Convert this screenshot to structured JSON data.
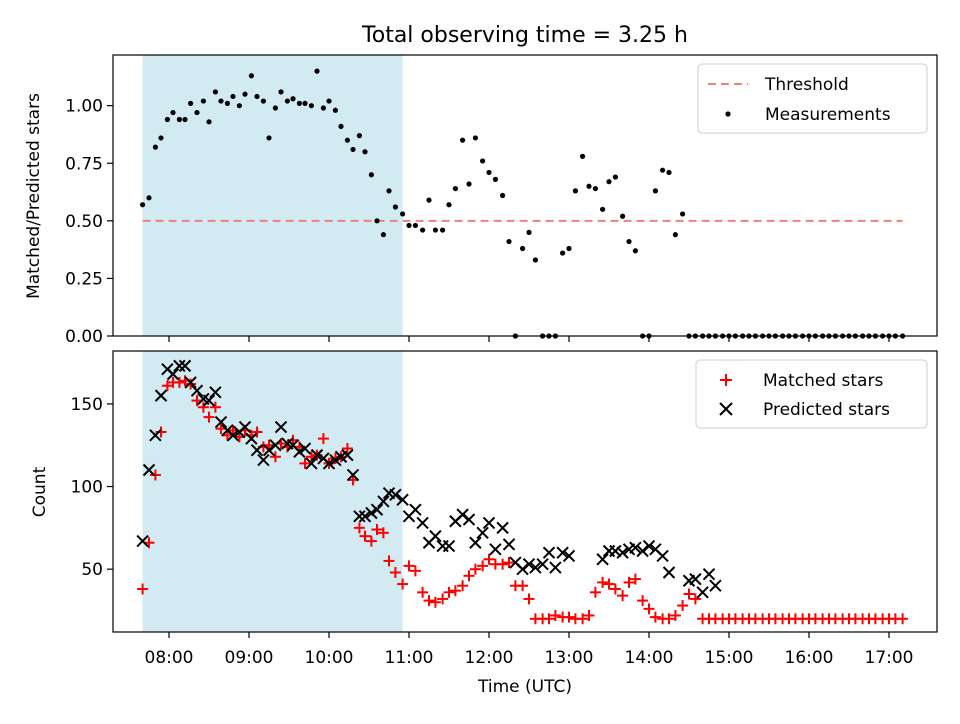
{
  "title": "Total observing time = 3.25 h",
  "colors": {
    "shade": "#add8e6",
    "threshold": "#f08080",
    "matched": "#ff0000",
    "predicted": "#000000",
    "measurement": "#000000"
  },
  "chart_data": [
    {
      "type": "scatter",
      "title": "Total observing time = 3.25 h",
      "xlabel": "",
      "ylabel": "Matched/Predicted stars",
      "ylim": [
        0,
        1.22
      ],
      "yticks": [
        0.0,
        0.25,
        0.5,
        0.75,
        1.0
      ],
      "ytick_labels": [
        "0.00",
        "0.25",
        "0.50",
        "0.75",
        "1.00"
      ],
      "xlim": [
        7.3,
        17.6
      ],
      "shaded_region": [
        7.67,
        10.92
      ],
      "legend": "top-right",
      "series": [
        {
          "name": "Threshold",
          "kind": "dashed-line",
          "x": [
            7.67,
            17.17
          ],
          "y": [
            0.5,
            0.5
          ]
        },
        {
          "name": "Measurements",
          "kind": "points",
          "x": [
            7.67,
            7.75,
            7.83,
            7.9,
            7.98,
            8.05,
            8.13,
            8.2,
            8.27,
            8.35,
            8.43,
            8.5,
            8.58,
            8.65,
            8.73,
            8.8,
            8.88,
            8.95,
            9.03,
            9.1,
            9.18,
            9.25,
            9.33,
            9.4,
            9.48,
            9.55,
            9.63,
            9.7,
            9.78,
            9.85,
            9.93,
            10.0,
            10.08,
            10.15,
            10.23,
            10.3,
            10.38,
            10.45,
            10.53,
            10.6,
            10.68,
            10.75,
            10.83,
            10.92,
            11.0,
            11.08,
            11.17,
            11.25,
            11.33,
            11.42,
            11.5,
            11.58,
            11.67,
            11.75,
            11.83,
            11.92,
            12.0,
            12.08,
            12.17,
            12.25,
            12.33,
            12.42,
            12.5,
            12.58,
            12.67,
            12.75,
            12.83,
            12.92,
            13.0,
            13.08,
            13.17,
            13.25,
            13.33,
            13.42,
            13.5,
            13.58,
            13.67,
            13.75,
            13.83,
            13.92,
            14.0,
            14.08,
            14.17,
            14.25,
            14.33,
            14.42,
            14.5,
            14.58,
            14.67,
            14.75,
            14.83,
            14.92,
            15.0,
            15.08,
            15.17,
            15.25,
            15.33,
            15.42,
            15.5,
            15.58,
            15.67,
            15.75,
            15.83,
            15.92,
            16.0,
            16.08,
            16.17,
            16.25,
            16.33,
            16.42,
            16.5,
            16.58,
            16.67,
            16.75,
            16.83,
            16.92,
            17.0,
            17.08,
            17.17
          ],
          "y": [
            0.57,
            0.6,
            0.82,
            0.86,
            0.94,
            0.97,
            0.94,
            0.94,
            1.01,
            0.97,
            1.02,
            0.93,
            1.06,
            1.02,
            1.01,
            1.04,
            1.0,
            1.05,
            1.13,
            1.04,
            1.02,
            0.86,
            0.99,
            1.06,
            1.02,
            1.03,
            1.01,
            1.01,
            1.0,
            1.15,
            0.99,
            1.02,
            0.98,
            0.91,
            0.85,
            0.81,
            0.87,
            0.8,
            0.7,
            0.5,
            0.44,
            0.63,
            0.56,
            0.53,
            0.48,
            0.48,
            0.46,
            0.59,
            0.46,
            0.46,
            0.57,
            0.64,
            0.85,
            0.66,
            0.86,
            0.76,
            0.71,
            0.68,
            0.61,
            0.41,
            0.0,
            0.38,
            0.45,
            0.33,
            0.0,
            0.0,
            0.0,
            0.36,
            0.38,
            0.63,
            0.78,
            0.65,
            0.64,
            0.55,
            0.67,
            0.69,
            0.52,
            0.41,
            0.37,
            0.0,
            0.0,
            0.63,
            0.72,
            0.71,
            0.44,
            0.53,
            0.0,
            0.0,
            0.0,
            0.0,
            0.0,
            0.0,
            0.0,
            0.0,
            0.0,
            0.0,
            0.0,
            0.0,
            0.0,
            0.0,
            0.0,
            0.0,
            0.0,
            0.0,
            0.0,
            0.0,
            0.0,
            0.0,
            0.0,
            0.0,
            0.0,
            0.0,
            0.0,
            0.0,
            0.0,
            0.0,
            0.0,
            0.0,
            0.0
          ]
        }
      ]
    },
    {
      "type": "scatter",
      "title": "",
      "xlabel": "Time (UTC)",
      "ylabel": "Count",
      "ylim": [
        12,
        182
      ],
      "yticks": [
        50,
        100,
        150
      ],
      "ytick_labels": [
        "50",
        "100",
        "150"
      ],
      "xlim": [
        7.3,
        17.6
      ],
      "xticks": [
        8,
        9,
        10,
        11,
        12,
        13,
        14,
        15,
        16,
        17
      ],
      "xtick_labels": [
        "08:00",
        "09:00",
        "10:00",
        "11:00",
        "12:00",
        "13:00",
        "14:00",
        "15:00",
        "16:00",
        "17:00"
      ],
      "shaded_region": [
        7.67,
        10.92
      ],
      "legend": "top-right",
      "series": [
        {
          "name": "Matched stars",
          "marker": "plus",
          "x": [
            7.67,
            7.75,
            7.83,
            7.9,
            7.98,
            8.05,
            8.13,
            8.2,
            8.27,
            8.35,
            8.43,
            8.5,
            8.58,
            8.65,
            8.73,
            8.8,
            8.88,
            8.95,
            9.03,
            9.1,
            9.18,
            9.25,
            9.33,
            9.4,
            9.48,
            9.55,
            9.63,
            9.7,
            9.78,
            9.85,
            9.93,
            10.0,
            10.08,
            10.15,
            10.23,
            10.3,
            10.38,
            10.45,
            10.53,
            10.6,
            10.68,
            10.75,
            10.83,
            10.92,
            11.0,
            11.08,
            11.17,
            11.25,
            11.33,
            11.42,
            11.5,
            11.58,
            11.67,
            11.75,
            11.83,
            11.92,
            12.0,
            12.08,
            12.17,
            12.25,
            12.33,
            12.42,
            12.5,
            12.58,
            12.67,
            12.75,
            12.83,
            12.92,
            13.0,
            13.08,
            13.17,
            13.25,
            13.33,
            13.42,
            13.5,
            13.58,
            13.67,
            13.75,
            13.83,
            13.92,
            14.0,
            14.08,
            14.17,
            14.25,
            14.33,
            14.42,
            14.5,
            14.58,
            14.67,
            14.75,
            14.83,
            14.92,
            15.0,
            15.08,
            15.17,
            15.25,
            15.33,
            15.42,
            15.5,
            15.58,
            15.67,
            15.75,
            15.83,
            15.92,
            16.0,
            16.08,
            16.17,
            16.25,
            16.33,
            16.42,
            16.5,
            16.58,
            16.67,
            16.75,
            16.83,
            16.92,
            17.0,
            17.08,
            17.17
          ],
          "y": [
            38,
            66,
            107,
            133,
            161,
            163,
            163,
            164,
            162,
            152,
            148,
            142,
            148,
            135,
            131,
            134,
            130,
            134,
            131,
            133,
            124,
            125,
            118,
            126,
            124,
            128,
            124,
            114,
            118,
            119,
            129,
            114,
            117,
            118,
            123,
            104,
            75,
            70,
            67,
            74,
            72,
            55,
            48,
            41,
            52,
            49,
            36,
            31,
            30,
            32,
            36,
            37,
            40,
            46,
            50,
            52,
            56,
            53,
            53,
            54,
            40,
            40,
            32,
            20,
            20,
            20,
            22,
            21,
            21,
            20,
            20,
            22,
            36,
            42,
            41,
            38,
            34,
            42,
            44,
            31,
            26,
            21,
            20,
            20,
            22,
            28,
            35,
            32,
            20,
            20,
            20,
            20,
            20,
            20,
            20,
            20,
            20,
            20,
            20,
            20,
            20,
            20,
            20,
            20,
            20,
            20,
            20,
            20,
            20,
            20,
            20,
            20,
            20,
            20,
            20,
            20,
            20,
            20,
            20
          ]
        },
        {
          "name": "Predicted stars",
          "marker": "x",
          "x": [
            7.67,
            7.75,
            7.83,
            7.9,
            7.98,
            8.05,
            8.13,
            8.2,
            8.27,
            8.35,
            8.43,
            8.5,
            8.58,
            8.65,
            8.73,
            8.8,
            8.88,
            8.95,
            9.03,
            9.1,
            9.18,
            9.25,
            9.33,
            9.4,
            9.48,
            9.55,
            9.63,
            9.7,
            9.78,
            9.85,
            9.93,
            10.0,
            10.08,
            10.15,
            10.23,
            10.3,
            10.38,
            10.45,
            10.53,
            10.6,
            10.68,
            10.75,
            10.83,
            10.92,
            11.0,
            11.08,
            11.17,
            11.25,
            11.33,
            11.42,
            11.5,
            11.58,
            11.67,
            11.75,
            11.83,
            11.92,
            12.0,
            12.08,
            12.17,
            12.25,
            12.33,
            12.42,
            12.5,
            12.58,
            12.67,
            12.75,
            12.83,
            12.92,
            13.0,
            13.42,
            13.5,
            13.58,
            13.67,
            13.75,
            13.83,
            13.92,
            14.0,
            14.08,
            14.17,
            14.25,
            14.5,
            14.58,
            14.67,
            14.75,
            14.83
          ],
          "y": [
            67,
            110,
            131,
            155,
            171,
            168,
            173,
            173,
            163,
            158,
            153,
            152,
            157,
            139,
            134,
            131,
            133,
            136,
            129,
            122,
            116,
            122,
            125,
            136,
            126,
            125,
            121,
            123,
            114,
            119,
            117,
            114,
            116,
            118,
            119,
            107,
            82,
            82,
            84,
            86,
            91,
            96,
            95,
            92,
            82,
            86,
            78,
            66,
            70,
            64,
            64,
            79,
            83,
            80,
            66,
            72,
            78,
            62,
            75,
            65,
            54,
            50,
            53,
            51,
            53,
            60,
            51,
            60,
            58,
            56,
            61,
            61,
            60,
            62,
            63,
            61,
            64,
            62,
            58,
            48,
            43,
            44,
            36,
            47,
            40
          ]
        }
      ]
    }
  ]
}
